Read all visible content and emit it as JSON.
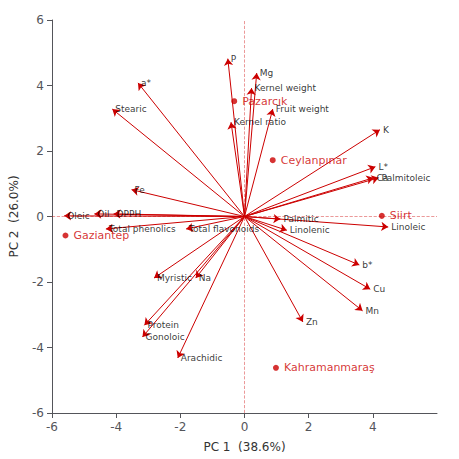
{
  "chart_data": {
    "type": "biplot",
    "xlabel": "PC 1  (38.6%)",
    "ylabel": "PC 2  (26.0%)",
    "xlim": [
      -6,
      6
    ],
    "ylim": [
      -6,
      6
    ],
    "xticks": [
      -6,
      -4,
      -2,
      0,
      2,
      4
    ],
    "yticks": [
      -6,
      -4,
      -2,
      0,
      2,
      4,
      6
    ],
    "grid": false,
    "series": [
      {
        "type": "arrow",
        "color": "#cc0000",
        "origin": [
          0,
          0
        ],
        "labels": [
          "P",
          "Mg",
          "Kernel weight",
          "Fruit weight",
          "Kernel ratio",
          "K",
          "a*",
          "Stearic",
          "L*",
          "Ca",
          "Palmitoleic",
          "Fe",
          "Oil",
          "DPPH",
          "Oleic",
          "Total phenolics",
          "Total flavonoids",
          "Palmitic",
          "Linolenic",
          "Linoleic",
          "b*",
          "Myristic",
          "Na",
          "Cu",
          "Protein",
          "Gonoloic",
          "Mn",
          "Zn",
          "Arachidic"
        ],
        "x": [
          -0.52,
          0.38,
          0.22,
          0.88,
          -0.42,
          4.22,
          -3.32,
          -4.12,
          4.08,
          4.02,
          4.18,
          -3.52,
          -4.68,
          -4.08,
          -5.62,
          -4.32,
          -1.82,
          1.12,
          1.32,
          4.48,
          3.58,
          -2.82,
          -1.52,
          3.92,
          -3.12,
          -3.18,
          3.68,
          1.82,
          -2.08
        ],
        "y": [
          4.82,
          4.38,
          3.92,
          3.28,
          2.88,
          2.65,
          4.08,
          3.28,
          1.52,
          1.18,
          1.18,
          0.82,
          0.08,
          0.08,
          0.02,
          -0.38,
          -0.38,
          -0.08,
          -0.42,
          -0.32,
          -1.48,
          -1.88,
          -1.88,
          -2.22,
          -3.32,
          -3.68,
          -2.88,
          -3.22,
          -4.32
        ]
      },
      {
        "type": "scatter",
        "color": "#cc0000",
        "labels": [
          "Pazarcık",
          "Ceylanpınar",
          "Siirt",
          "Gaziantep",
          "Kahramanmaraş"
        ],
        "x": [
          -0.32,
          0.88,
          4.28,
          -5.58,
          0.98
        ],
        "y": [
          3.52,
          1.72,
          0.02,
          -0.58,
          -4.62
        ]
      }
    ]
  }
}
